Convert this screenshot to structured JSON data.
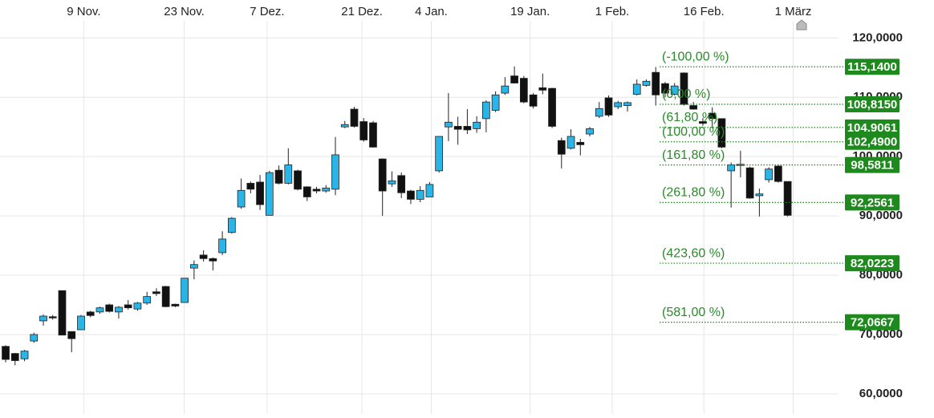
{
  "chart_data": {
    "type": "candlestick",
    "up_color": "#2ab5e8",
    "down_color": "#111111",
    "fib_color": "#1e8a1e",
    "xlim": [
      -0.6,
      88.4
    ],
    "ylim": [
      56.6,
      126.4
    ],
    "grid": true,
    "xticks": [
      {
        "value": 8.29,
        "label": "9 Nov."
      },
      {
        "value": 18.95,
        "label": "23 Nov."
      },
      {
        "value": 27.75,
        "label": "7 Dez."
      },
      {
        "value": 37.82,
        "label": "21 Dez."
      },
      {
        "value": 45.18,
        "label": "4 Jan."
      },
      {
        "value": 55.67,
        "label": "19 Jan."
      },
      {
        "value": 64.38,
        "label": "1 Feb."
      },
      {
        "value": 74.11,
        "label": "16 Feb."
      },
      {
        "value": 83.59,
        "label": "1 März"
      }
    ],
    "yticks": [
      {
        "value": 60,
        "label": "60,0000"
      },
      {
        "value": 70,
        "label": "70,0000"
      },
      {
        "value": 80,
        "label": "80,0000"
      },
      {
        "value": 90,
        "label": "90,0000"
      },
      {
        "value": 100,
        "label": "100,0000"
      },
      {
        "value": 110,
        "label": "110,0000"
      },
      {
        "value": 120,
        "label": "120,0000"
      }
    ],
    "candles": [
      {
        "o": 68.0,
        "h": 68.2,
        "l": 65.3,
        "c": 65.8
      },
      {
        "o": 66.8,
        "h": 66.9,
        "l": 64.8,
        "c": 65.6
      },
      {
        "o": 65.9,
        "h": 67.4,
        "l": 65.5,
        "c": 67.2
      },
      {
        "o": 68.9,
        "h": 70.3,
        "l": 68.6,
        "c": 70.0
      },
      {
        "o": 72.3,
        "h": 73.4,
        "l": 71.5,
        "c": 73.1
      },
      {
        "o": 73.0,
        "h": 73.3,
        "l": 72.5,
        "c": 72.8
      },
      {
        "o": 77.4,
        "h": 77.4,
        "l": 69.9,
        "c": 69.9
      },
      {
        "o": 70.5,
        "h": 70.5,
        "l": 67.0,
        "c": 69.3
      },
      {
        "o": 70.8,
        "h": 73.3,
        "l": 70.8,
        "c": 73.1
      },
      {
        "o": 73.8,
        "h": 74.0,
        "l": 72.9,
        "c": 73.2
      },
      {
        "o": 73.8,
        "h": 74.7,
        "l": 73.5,
        "c": 74.5
      },
      {
        "o": 75.0,
        "h": 75.2,
        "l": 73.7,
        "c": 73.9
      },
      {
        "o": 73.8,
        "h": 74.8,
        "l": 72.7,
        "c": 74.6
      },
      {
        "o": 75.0,
        "h": 75.8,
        "l": 74.2,
        "c": 74.5
      },
      {
        "o": 74.3,
        "h": 75.5,
        "l": 74.0,
        "c": 75.3
      },
      {
        "o": 75.3,
        "h": 77.2,
        "l": 75.0,
        "c": 76.4
      },
      {
        "o": 77.2,
        "h": 77.8,
        "l": 76.5,
        "c": 76.9
      },
      {
        "o": 78.1,
        "h": 78.2,
        "l": 74.6,
        "c": 74.7
      },
      {
        "o": 75.1,
        "h": 75.2,
        "l": 74.6,
        "c": 74.8
      },
      {
        "o": 75.4,
        "h": 79.5,
        "l": 75.4,
        "c": 79.5
      },
      {
        "o": 81.2,
        "h": 82.5,
        "l": 79.3,
        "c": 81.8
      },
      {
        "o": 83.4,
        "h": 84.2,
        "l": 82.3,
        "c": 82.8
      },
      {
        "o": 82.8,
        "h": 83.0,
        "l": 80.8,
        "c": 82.4
      },
      {
        "o": 83.8,
        "h": 87.4,
        "l": 83.4,
        "c": 86.1
      },
      {
        "o": 87.2,
        "h": 89.8,
        "l": 87.0,
        "c": 89.6
      },
      {
        "o": 91.5,
        "h": 96.3,
        "l": 91.2,
        "c": 94.3
      },
      {
        "o": 95.5,
        "h": 95.8,
        "l": 93.8,
        "c": 94.5
      },
      {
        "o": 95.7,
        "h": 96.9,
        "l": 91.0,
        "c": 91.9
      },
      {
        "o": 90.1,
        "h": 97.6,
        "l": 90.1,
        "c": 97.3
      },
      {
        "o": 97.7,
        "h": 98.5,
        "l": 95.3,
        "c": 95.5
      },
      {
        "o": 95.5,
        "h": 101.4,
        "l": 95.3,
        "c": 98.6
      },
      {
        "o": 97.6,
        "h": 97.8,
        "l": 94.3,
        "c": 94.5
      },
      {
        "o": 94.9,
        "h": 95.0,
        "l": 92.5,
        "c": 93.2
      },
      {
        "o": 94.5,
        "h": 94.9,
        "l": 93.8,
        "c": 94.2
      },
      {
        "o": 94.2,
        "h": 95.2,
        "l": 93.9,
        "c": 94.7
      },
      {
        "o": 94.5,
        "h": 103.3,
        "l": 93.5,
        "c": 100.3
      },
      {
        "o": 105.0,
        "h": 106.0,
        "l": 104.8,
        "c": 105.4
      },
      {
        "o": 108.0,
        "h": 108.4,
        "l": 104.9,
        "c": 105.1
      },
      {
        "o": 105.9,
        "h": 106.5,
        "l": 102.5,
        "c": 102.8
      },
      {
        "o": 105.7,
        "h": 106.0,
        "l": 101.5,
        "c": 101.6
      },
      {
        "o": 99.6,
        "h": 99.7,
        "l": 90.0,
        "c": 94.2
      },
      {
        "o": 95.4,
        "h": 97.5,
        "l": 94.9,
        "c": 95.9
      },
      {
        "o": 96.8,
        "h": 97.3,
        "l": 93.0,
        "c": 93.9
      },
      {
        "o": 94.2,
        "h": 94.4,
        "l": 92.0,
        "c": 92.8
      },
      {
        "o": 92.8,
        "h": 95.0,
        "l": 92.3,
        "c": 94.3
      },
      {
        "o": 93.2,
        "h": 95.7,
        "l": 93.2,
        "c": 95.3
      },
      {
        "o": 97.6,
        "h": 103.4,
        "l": 97.3,
        "c": 103.4
      },
      {
        "o": 105.0,
        "h": 110.7,
        "l": 102.6,
        "c": 105.8
      },
      {
        "o": 105.1,
        "h": 106.7,
        "l": 102.0,
        "c": 104.6
      },
      {
        "o": 105.1,
        "h": 108.0,
        "l": 103.8,
        "c": 104.5
      },
      {
        "o": 104.7,
        "h": 106.8,
        "l": 104.0,
        "c": 105.8
      },
      {
        "o": 106.4,
        "h": 109.5,
        "l": 104.1,
        "c": 109.2
      },
      {
        "o": 107.8,
        "h": 111.0,
        "l": 107.5,
        "c": 110.4
      },
      {
        "o": 110.7,
        "h": 113.4,
        "l": 110.4,
        "c": 111.9
      },
      {
        "o": 113.6,
        "h": 115.2,
        "l": 112.3,
        "c": 112.4
      },
      {
        "o": 113.2,
        "h": 113.6,
        "l": 109.0,
        "c": 109.2
      },
      {
        "o": 110.4,
        "h": 110.7,
        "l": 108.1,
        "c": 108.5
      },
      {
        "o": 111.6,
        "h": 114.0,
        "l": 110.5,
        "c": 111.2
      },
      {
        "o": 111.5,
        "h": 111.6,
        "l": 104.8,
        "c": 105.1
      },
      {
        "o": 102.7,
        "h": 103.2,
        "l": 98.0,
        "c": 100.4
      },
      {
        "o": 101.4,
        "h": 104.6,
        "l": 101.2,
        "c": 103.4
      },
      {
        "o": 102.4,
        "h": 103.0,
        "l": 100.2,
        "c": 102.0
      },
      {
        "o": 103.8,
        "h": 105.0,
        "l": 103.4,
        "c": 104.7
      },
      {
        "o": 106.8,
        "h": 109.2,
        "l": 106.5,
        "c": 108.1
      },
      {
        "o": 109.9,
        "h": 110.3,
        "l": 106.7,
        "c": 107.0
      },
      {
        "o": 108.4,
        "h": 109.4,
        "l": 108.0,
        "c": 109.1
      },
      {
        "o": 108.6,
        "h": 109.3,
        "l": 107.6,
        "c": 109.1
      },
      {
        "o": 110.5,
        "h": 113.0,
        "l": 110.3,
        "c": 112.2
      },
      {
        "o": 112.0,
        "h": 113.0,
        "l": 111.8,
        "c": 112.7
      },
      {
        "o": 114.2,
        "h": 115.1,
        "l": 108.6,
        "c": 110.4
      },
      {
        "o": 112.3,
        "h": 112.6,
        "l": 110.0,
        "c": 110.7
      },
      {
        "o": 110.5,
        "h": 112.4,
        "l": 110.3,
        "c": 111.9
      },
      {
        "o": 114.1,
        "h": 114.2,
        "l": 108.6,
        "c": 108.8
      },
      {
        "o": 108.6,
        "h": 109.2,
        "l": 107.9,
        "c": 108.0
      },
      {
        "o": 105.9,
        "h": 106.5,
        "l": 105.2,
        "c": 105.6
      },
      {
        "o": 107.3,
        "h": 108.3,
        "l": 104.8,
        "c": 106.4
      },
      {
        "o": 106.4,
        "h": 106.4,
        "l": 101.4,
        "c": 101.6
      },
      {
        "o": 97.6,
        "h": 99.0,
        "l": 91.4,
        "c": 98.6
      },
      {
        "o": 98.6,
        "h": 101.0,
        "l": 96.5,
        "c": 98.7
      },
      {
        "o": 98.1,
        "h": 98.3,
        "l": 92.9,
        "c": 93.0
      },
      {
        "o": 93.4,
        "h": 94.6,
        "l": 89.9,
        "c": 93.7
      },
      {
        "o": 96.1,
        "h": 98.2,
        "l": 95.6,
        "c": 97.9
      },
      {
        "o": 98.4,
        "h": 98.7,
        "l": 95.6,
        "c": 95.8
      },
      {
        "o": 95.8,
        "h": 95.8,
        "l": 89.9,
        "c": 90.1
      }
    ],
    "fib": {
      "labels": [
        "(-100,00 %)",
        "(0,00 %)",
        "(61,80 %)",
        "(100,00 %)",
        "(161,80 %)",
        "(261,80 %)",
        "(423,60 %)",
        "(581,00 %)"
      ],
      "values": [
        115.14,
        108.815,
        104.9061,
        102.49,
        98.5811,
        92.2561,
        82.0223,
        72.0667
      ],
      "value_labels": [
        "115,1400",
        "108,8150",
        "104.9061",
        "102,4900",
        "98,5811",
        "92,2561",
        "82,0223",
        "72,0667"
      ]
    }
  }
}
